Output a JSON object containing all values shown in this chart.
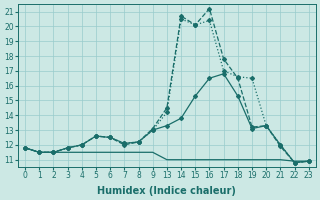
{
  "xlabel": "Humidex (Indice chaleur)",
  "bg_color": "#cce8e4",
  "grid_color": "#99cccc",
  "line_color": "#1a6e6a",
  "ylim": [
    10.5,
    21.5
  ],
  "yticks": [
    11,
    12,
    13,
    14,
    15,
    16,
    17,
    18,
    19,
    20,
    21
  ],
  "xtick_labels": [
    "0",
    "1",
    "2",
    "3",
    "4",
    "5",
    "6",
    "7",
    "8",
    "9",
    "13",
    "14",
    "15",
    "16",
    "17",
    "18",
    "19",
    "20",
    "21",
    "22",
    "23"
  ],
  "lines": [
    {
      "y": [
        11.8,
        11.5,
        11.5,
        11.5,
        11.5,
        11.5,
        11.5,
        11.5,
        11.5,
        11.5,
        11.0,
        11.0,
        11.0,
        11.0,
        11.0,
        11.0,
        11.0,
        11.0,
        11.0,
        10.9,
        10.9
      ],
      "marker": false,
      "linestyle": "-",
      "linewidth": 0.9
    },
    {
      "y": [
        11.8,
        11.5,
        11.5,
        11.8,
        12.0,
        12.6,
        12.5,
        12.1,
        12.2,
        13.0,
        13.3,
        13.8,
        15.3,
        16.5,
        16.8,
        15.3,
        13.1,
        13.3,
        12.0,
        10.8,
        10.9
      ],
      "marker": true,
      "linestyle": "-",
      "linewidth": 0.9
    },
    {
      "y": [
        11.8,
        11.5,
        11.5,
        11.8,
        12.0,
        12.6,
        12.5,
        12.1,
        12.2,
        13.0,
        14.2,
        20.5,
        20.1,
        20.4,
        17.0,
        16.6,
        16.5,
        13.3,
        12.0,
        10.8,
        10.9
      ],
      "marker": true,
      "linestyle": "dotted",
      "linewidth": 0.9
    },
    {
      "y": [
        11.8,
        11.5,
        11.5,
        11.8,
        12.0,
        12.6,
        12.5,
        12.0,
        12.2,
        13.1,
        14.5,
        20.7,
        20.1,
        21.2,
        17.8,
        16.5,
        13.2,
        13.3,
        11.9,
        10.8,
        10.9
      ],
      "marker": true,
      "linestyle": "--",
      "linewidth": 0.9
    }
  ]
}
